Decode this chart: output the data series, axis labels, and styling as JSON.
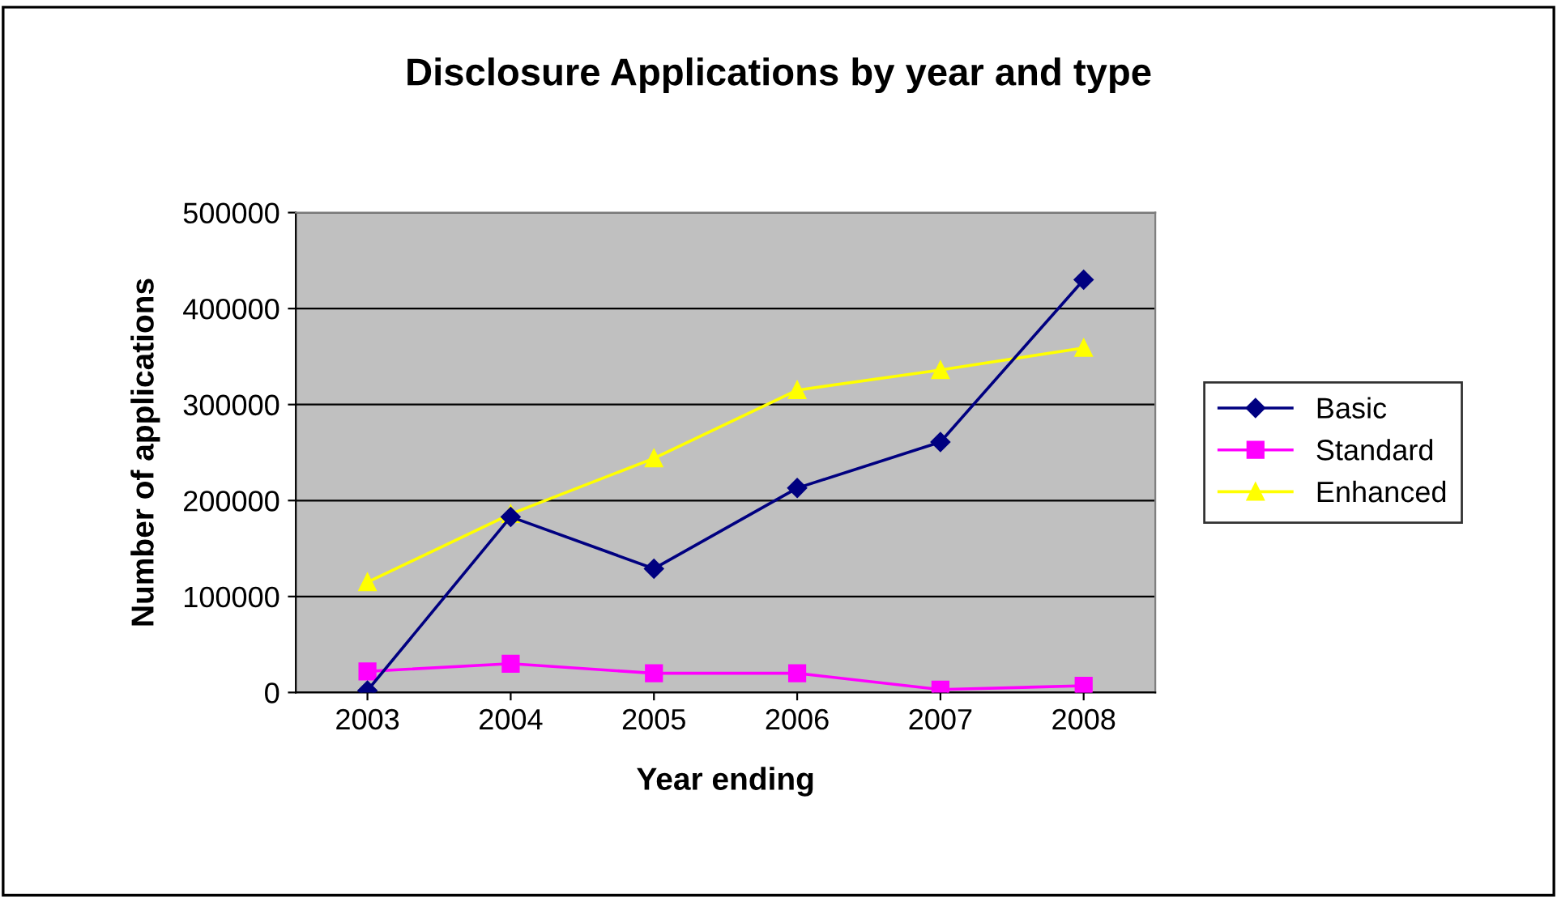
{
  "chart_data": {
    "type": "line",
    "title": "Disclosure Applications by year and type",
    "xlabel": "Year ending",
    "ylabel": "Number of applications",
    "categories": [
      "2003",
      "2004",
      "2005",
      "2006",
      "2007",
      "2008"
    ],
    "series": [
      {
        "name": "Basic",
        "color": "#000080",
        "marker": "diamond",
        "values": [
          2000,
          183000,
          129000,
          213000,
          261000,
          430000
        ]
      },
      {
        "name": "Standard",
        "color": "#ff00ff",
        "marker": "square",
        "values": [
          22000,
          30000,
          20000,
          20000,
          3000,
          7000
        ]
      },
      {
        "name": "Enhanced",
        "color": "#ffff00",
        "marker": "triangle",
        "values": [
          115000,
          186000,
          244000,
          315000,
          336000,
          359000
        ]
      }
    ],
    "ylim": [
      0,
      500000
    ],
    "yticks": [
      0,
      100000,
      200000,
      300000,
      400000,
      500000
    ],
    "grid": "y",
    "legend": "right"
  }
}
